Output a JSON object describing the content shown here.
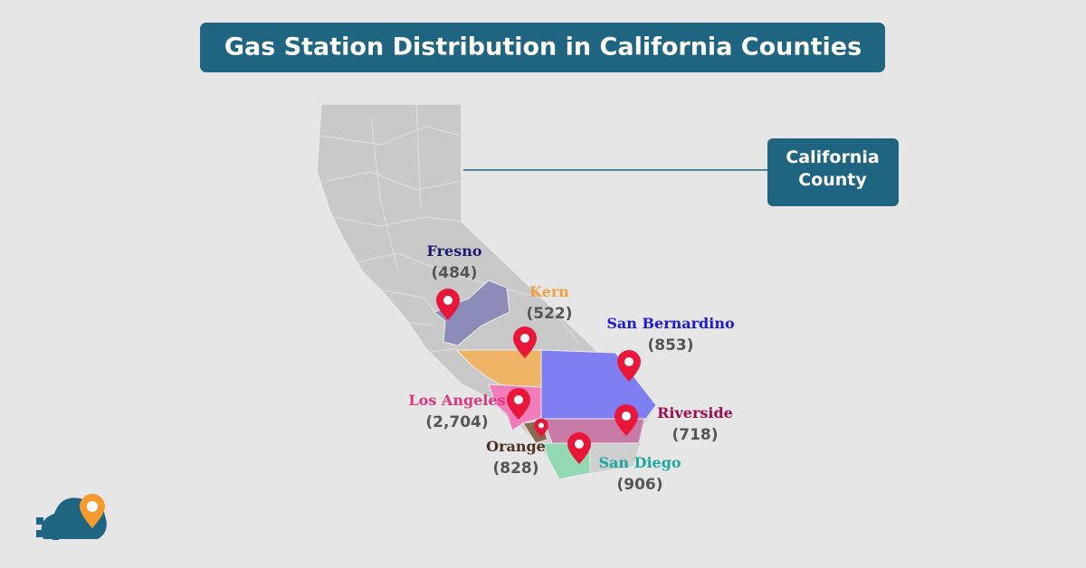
{
  "header": {
    "title": "Gas Station Distribution in California Counties"
  },
  "legend": {
    "label": "California County",
    "color": "#1f6480"
  },
  "counties": [
    {
      "name": "Fresno",
      "count": "(484)",
      "name_color": "#1c1a6e",
      "fill": "#8c8cb8"
    },
    {
      "name": "Kern",
      "count": "(522)",
      "name_color": "#f0a040",
      "fill": "#f0b466"
    },
    {
      "name": "San Bernardino",
      "count": "(853)",
      "name_color": "#1a1ae0",
      "fill": "#7f7ff2"
    },
    {
      "name": "Los Angeles",
      "count": "(2,704)",
      "name_color": "#e0357e",
      "fill": "#f07cba"
    },
    {
      "name": "Riverside",
      "count": "(718)",
      "name_color": "#9a1050",
      "fill": "#c77aa6"
    },
    {
      "name": "Orange",
      "count": "(828)",
      "name_color": "#4a3020",
      "fill": "#8a6a50"
    },
    {
      "name": "San Diego",
      "count": "(906)",
      "name_color": "#1aa8a0",
      "fill": "#93d9b2"
    }
  ]
}
